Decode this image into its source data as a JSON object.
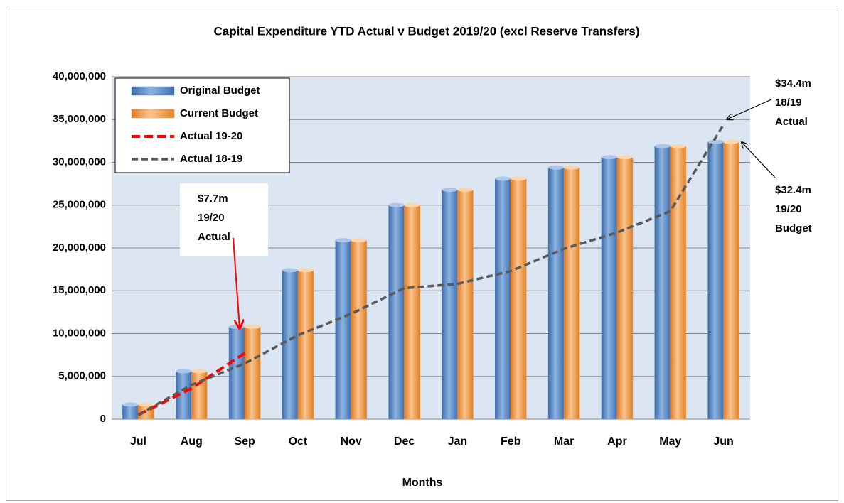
{
  "chart_data": {
    "type": "bar",
    "title": "Capital Expenditure  YTD Actual v Budget 2019/20 (excl Reserve Transfers)",
    "x_label": "Months",
    "categories": [
      "Jul",
      "Aug",
      "Sep",
      "Oct",
      "Nov",
      "Dec",
      "Jan",
      "Feb",
      "Mar",
      "Apr",
      "May",
      "Jun"
    ],
    "series": [
      {
        "name": "Original Budget",
        "type": "bar",
        "color": "#4f81bd",
        "values": [
          1700000,
          5600000,
          10800000,
          17400000,
          20900000,
          25000000,
          26800000,
          28100000,
          29400000,
          30600000,
          31900000,
          32400000
        ]
      },
      {
        "name": "Current Budget",
        "type": "bar",
        "color": "#f79646",
        "values": [
          1700000,
          5600000,
          10800000,
          17400000,
          20900000,
          25000000,
          26800000,
          28100000,
          29400000,
          30600000,
          31900000,
          32400000
        ]
      },
      {
        "name": "Actual 19-20",
        "type": "line",
        "color": "#ff0000",
        "values": [
          500000,
          3600000,
          7700000,
          null,
          null,
          null,
          null,
          null,
          null,
          null,
          null,
          null
        ]
      },
      {
        "name": "Actual 18-19",
        "type": "line",
        "color": "#595959",
        "values": [
          500000,
          4000000,
          6500000,
          9800000,
          12300000,
          15300000,
          15800000,
          17300000,
          19900000,
          21800000,
          24300000,
          34400000
        ]
      }
    ],
    "ylim": [
      0,
      40000000
    ],
    "yticks": [
      0,
      {
        "value": 5000000,
        "label": "5,000,000"
      },
      {
        "value": 10000000,
        "label": "10,000,000"
      },
      {
        "value": 15000000,
        "label": "15,000,000"
      },
      {
        "value": 20000000,
        "label": "20,000,000"
      },
      {
        "value": 25000000,
        "label": "25,000,000"
      },
      {
        "value": 30000000,
        "label": "30,000,000"
      },
      {
        "value": 35000000,
        "label": "35,000,000"
      },
      {
        "value": 40000000,
        "label": "40,000,000"
      }
    ],
    "grid": true,
    "legend": "top-left",
    "annotations": [
      {
        "lines": [
          "$7.7m",
          "19/20",
          "Actual"
        ]
      },
      {
        "lines": [
          "$34.4m",
          "18/19",
          "Actual"
        ]
      },
      {
        "lines": [
          "$32.4m",
          "19/20",
          "Budget"
        ]
      }
    ]
  }
}
